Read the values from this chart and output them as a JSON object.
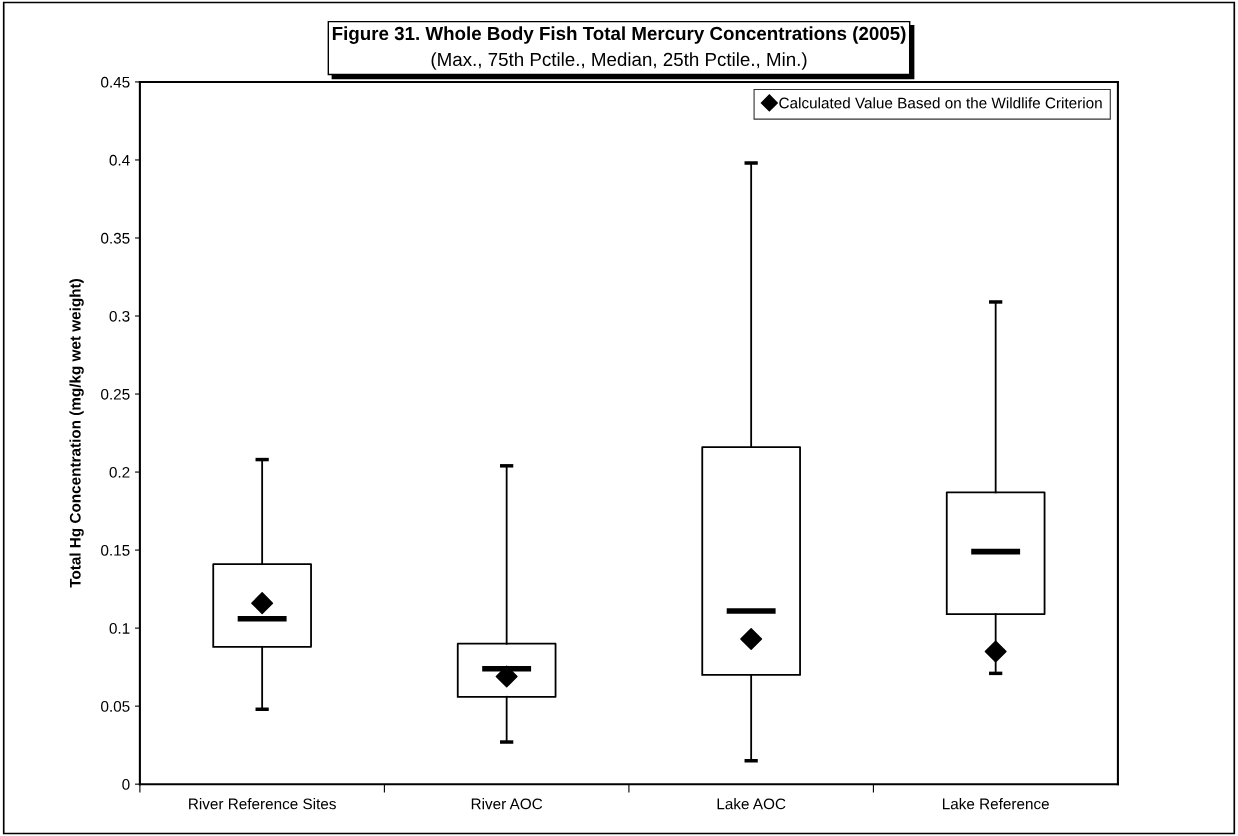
{
  "chart_data": {
    "type": "box",
    "title": "Figure 31. Whole Body Fish Total Mercury Concentrations (2005)",
    "subtitle": "(Max., 75th Pctile., Median, 25th Pctile., Min.)",
    "ylabel": "Total Hg Concentration (mg/kg wet weight)",
    "categories": [
      "River Reference Sites",
      "River AOC",
      "Lake AOC",
      "Lake Reference"
    ],
    "boxes": [
      {
        "low": 0.048,
        "q1": 0.088,
        "median": 0.106,
        "q3": 0.141,
        "high": 0.208
      },
      {
        "low": 0.027,
        "q1": 0.056,
        "median": 0.074,
        "q3": 0.09,
        "high": 0.204
      },
      {
        "low": 0.015,
        "q1": 0.07,
        "median": 0.111,
        "q3": 0.216,
        "high": 0.398
      },
      {
        "low": 0.071,
        "q1": 0.109,
        "median": 0.149,
        "q3": 0.187,
        "high": 0.309
      }
    ],
    "series": [
      {
        "type": "scatter",
        "name": "Calculated Value Based on the Wildlife Criterion",
        "color": "#000000",
        "marker": "diamond",
        "x": [
          "River Reference Sites",
          "River AOC",
          "Lake AOC",
          "Lake Reference"
        ],
        "values": [
          0.116,
          0.069,
          0.093,
          0.085
        ]
      }
    ],
    "ylim": [
      0,
      0.45
    ],
    "yticks": [
      0,
      0.05,
      0.1,
      0.15,
      0.2,
      0.25,
      0.3,
      0.35,
      0.4,
      0.45
    ],
    "grid": false,
    "legend": "top right"
  }
}
